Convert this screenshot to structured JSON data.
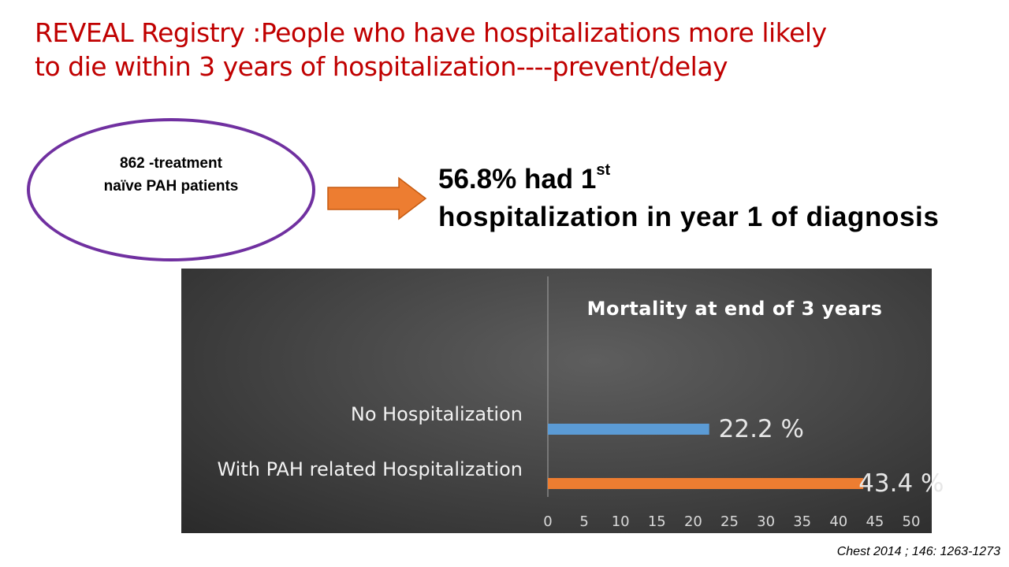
{
  "slide": {
    "title_line1": "REVEAL Registry :People who have hospitalizations more likely",
    "title_line2": "to die within 3 years of hospitalization----prevent/delay",
    "ellipse_line1": "862 -treatment",
    "ellipse_line2": "naïve PAH patients",
    "callout_line1_main": "56.8% had 1",
    "callout_line1_sup": "st",
    "callout_line2": "hospitalization in year 1 of diagnosis",
    "citation": "Chest 2014 ; 146: 1263-1273"
  },
  "colors": {
    "title": "#c00000",
    "ellipse_border": "#7030a0",
    "arrow": "#ed7d31",
    "bar_no_hosp": "#5b9bd5",
    "bar_hosp": "#ed7d31"
  },
  "chart_data": {
    "type": "bar",
    "orientation": "horizontal",
    "title": "Mortality at end of 3 years",
    "categories": [
      "No Hospitalization",
      "With PAH related Hospitalization"
    ],
    "values": [
      22.2,
      43.4
    ],
    "data_labels": [
      "22.2 %",
      "43.4 %"
    ],
    "bar_colors": [
      "#5b9bd5",
      "#ed7d31"
    ],
    "xlim": [
      0,
      50
    ],
    "x_ticks": [
      "0",
      "5",
      "10",
      "15",
      "20",
      "25",
      "30",
      "35",
      "40",
      "45",
      "50"
    ],
    "grid": false,
    "legend": "none"
  }
}
